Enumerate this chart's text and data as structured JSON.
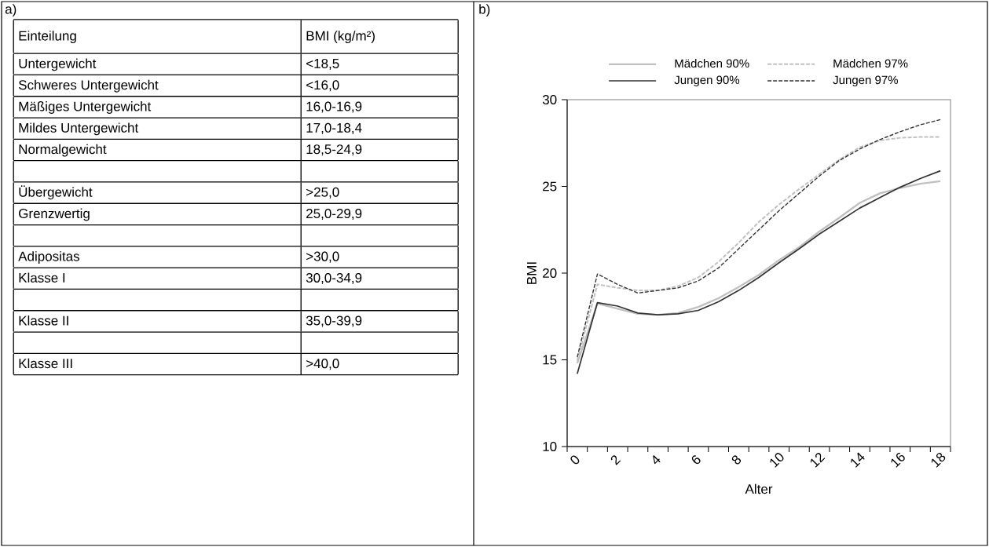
{
  "chart_data": [
    {
      "type": "other",
      "title": "a)",
      "xlabel": "Einteilung",
      "ylabel": "BMI (kg/m²)",
      "categories": [
        "Untergewicht",
        "Schweres Untergewicht",
        "Mäßiges Untergewicht",
        "Mildes Untergewicht",
        "Normalgewicht",
        null,
        "Übergewicht",
        "Grenzwertig",
        null,
        "Adipositas",
        "Klasse I",
        null,
        "Klasse II",
        null,
        "Klasse III"
      ],
      "annotations": [
        "<18,5",
        "<16,0",
        "16,0-16,9",
        "17,0-18,4",
        "18,5-24,9",
        ">25,0",
        "25,0-29,9",
        ">30,0",
        "30,0-34,9",
        "35,0-39,9",
        ">40,0"
      ]
    },
    {
      "type": "line",
      "title": "b)",
      "xlabel": "Alter",
      "ylabel": "BMI",
      "x": [
        0.5,
        1.5,
        2.5,
        3.5,
        4.5,
        5.5,
        6.5,
        7.5,
        8.5,
        9.5,
        10.5,
        11.5,
        12.5,
        13.5,
        14.5,
        15.5,
        16.5,
        17.5,
        18.5
      ],
      "series": [
        {
          "name": "Mädchen 90%",
          "color": "#c0c0c0",
          "line_style": "solid",
          "values": [
            14.8,
            18.25,
            17.95,
            17.65,
            17.6,
            17.7,
            18.05,
            18.55,
            19.2,
            19.9,
            20.75,
            21.5,
            22.4,
            23.2,
            24.05,
            24.6,
            24.9,
            25.15,
            25.3
          ]
        },
        {
          "name": "Mädchen 97%",
          "color": "#c0c0c0",
          "line_style": "dashed",
          "values": [
            14.95,
            19.35,
            19.15,
            19.0,
            19.0,
            19.25,
            19.75,
            20.65,
            21.75,
            22.95,
            23.95,
            24.85,
            25.7,
            26.55,
            27.25,
            27.65,
            27.8,
            27.85,
            27.85
          ]
        },
        {
          "name": "Jungen 90%",
          "color": "#333333",
          "line_style": "solid",
          "values": [
            14.2,
            18.3,
            18.1,
            17.7,
            17.6,
            17.65,
            17.85,
            18.35,
            19.0,
            19.75,
            20.6,
            21.4,
            22.25,
            23.0,
            23.75,
            24.35,
            24.95,
            25.45,
            25.9
          ]
        },
        {
          "name": "Jungen 97%",
          "color": "#333333",
          "line_style": "dashed",
          "values": [
            15.15,
            19.95,
            19.35,
            18.85,
            19.0,
            19.15,
            19.55,
            20.3,
            21.4,
            22.5,
            23.6,
            24.6,
            25.6,
            26.5,
            27.15,
            27.7,
            28.15,
            28.55,
            28.85
          ]
        }
      ],
      "xlim": [
        0,
        19
      ],
      "xticks": [
        0,
        {
          "value": 1,
          "label": null
        },
        2,
        {
          "value": 3,
          "label": null
        },
        4,
        {
          "value": 5,
          "label": null
        },
        6,
        {
          "value": 7,
          "label": null
        },
        8,
        {
          "value": 9,
          "label": null
        },
        10,
        {
          "value": 11,
          "label": null
        },
        12,
        {
          "value": 13,
          "label": null
        },
        14,
        {
          "value": 15,
          "label": null
        },
        16,
        {
          "value": 17,
          "label": null
        },
        18,
        {
          "value": 19,
          "label": null
        }
      ],
      "ylim": [
        10,
        30
      ],
      "yticks": [
        10,
        15,
        20,
        25,
        30
      ],
      "grid": false,
      "legend": "top"
    }
  ]
}
